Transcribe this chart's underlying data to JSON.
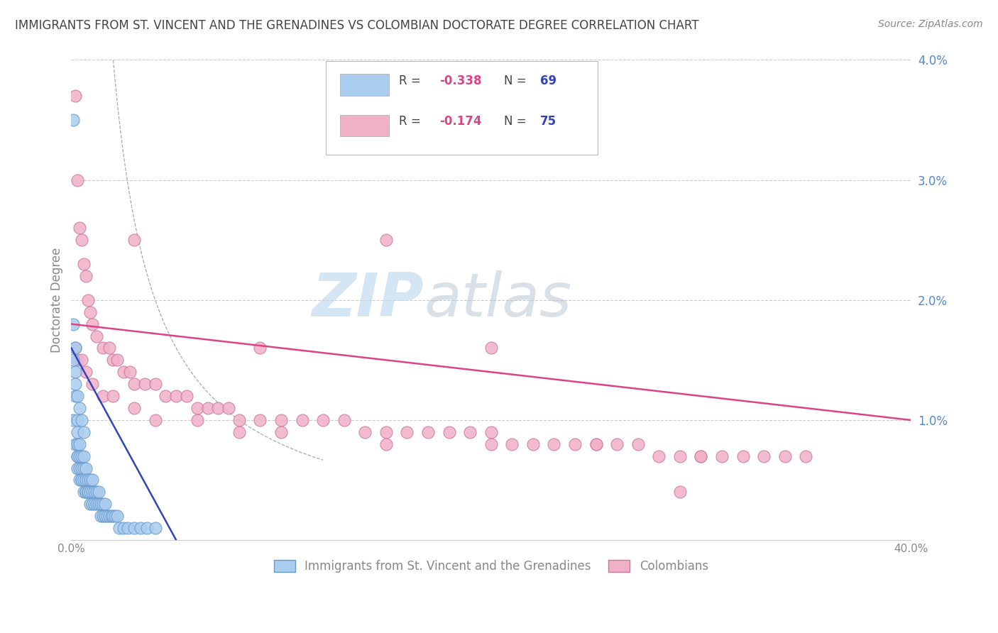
{
  "title": "IMMIGRANTS FROM ST. VINCENT AND THE GRENADINES VS COLOMBIAN DOCTORATE DEGREE CORRELATION CHART",
  "source": "Source: ZipAtlas.com",
  "ylabel": "Doctorate Degree",
  "xlim": [
    0.0,
    0.4
  ],
  "ylim": [
    0.0,
    0.04
  ],
  "xtick_positions": [
    0.0,
    0.4
  ],
  "xtick_labels": [
    "0.0%",
    "40.0%"
  ],
  "ytick_positions": [
    0.01,
    0.02,
    0.03,
    0.04
  ],
  "ytick_labels": [
    "1.0%",
    "2.0%",
    "3.0%",
    "4.0%"
  ],
  "series1_label": "Immigrants from St. Vincent and the Grenadines",
  "series1_R": "-0.338",
  "series1_N": "69",
  "series1_color": "#aaccee",
  "series1_edge": "#6699cc",
  "series2_label": "Colombians",
  "series2_R": "-0.174",
  "series2_N": "75",
  "series2_color": "#f0b0c8",
  "series2_edge": "#cc7799",
  "line1_color": "#3344bb",
  "line2_color": "#dd4488",
  "dashed_color": "#aaaaaa",
  "watermark_zip": "ZIP",
  "watermark_atlas": "atlas",
  "background_color": "#ffffff",
  "grid_color": "#cccccc",
  "title_color": "#444444",
  "axis_color": "#888888",
  "ytick_color": "#5588cc",
  "legend_R_color": "#dd4488",
  "legend_N_color": "#3344bb",
  "legend_text_color": "#444444",
  "series1_x": [
    0.001,
    0.001,
    0.001,
    0.002,
    0.002,
    0.002,
    0.002,
    0.003,
    0.003,
    0.003,
    0.003,
    0.003,
    0.003,
    0.004,
    0.004,
    0.004,
    0.004,
    0.005,
    0.005,
    0.005,
    0.005,
    0.006,
    0.006,
    0.006,
    0.006,
    0.007,
    0.007,
    0.007,
    0.007,
    0.008,
    0.008,
    0.008,
    0.009,
    0.009,
    0.009,
    0.01,
    0.01,
    0.01,
    0.011,
    0.011,
    0.012,
    0.012,
    0.013,
    0.013,
    0.014,
    0.014,
    0.015,
    0.015,
    0.016,
    0.016,
    0.017,
    0.018,
    0.019,
    0.02,
    0.021,
    0.022,
    0.023,
    0.025,
    0.027,
    0.03,
    0.033,
    0.036,
    0.04,
    0.001,
    0.002,
    0.003,
    0.004,
    0.005,
    0.006
  ],
  "series1_y": [
    0.035,
    0.018,
    0.01,
    0.016,
    0.014,
    0.012,
    0.008,
    0.01,
    0.009,
    0.008,
    0.007,
    0.007,
    0.006,
    0.008,
    0.007,
    0.006,
    0.005,
    0.007,
    0.006,
    0.005,
    0.005,
    0.007,
    0.006,
    0.005,
    0.004,
    0.006,
    0.005,
    0.004,
    0.004,
    0.005,
    0.004,
    0.004,
    0.005,
    0.004,
    0.003,
    0.005,
    0.004,
    0.003,
    0.004,
    0.003,
    0.004,
    0.003,
    0.004,
    0.003,
    0.003,
    0.002,
    0.003,
    0.002,
    0.003,
    0.002,
    0.002,
    0.002,
    0.002,
    0.002,
    0.002,
    0.002,
    0.001,
    0.001,
    0.001,
    0.001,
    0.001,
    0.001,
    0.001,
    0.015,
    0.013,
    0.012,
    0.011,
    0.01,
    0.009
  ],
  "series2_x": [
    0.002,
    0.003,
    0.004,
    0.005,
    0.006,
    0.007,
    0.008,
    0.009,
    0.01,
    0.012,
    0.015,
    0.018,
    0.02,
    0.022,
    0.025,
    0.028,
    0.03,
    0.035,
    0.04,
    0.045,
    0.05,
    0.055,
    0.06,
    0.065,
    0.07,
    0.075,
    0.08,
    0.09,
    0.1,
    0.11,
    0.12,
    0.13,
    0.14,
    0.15,
    0.16,
    0.17,
    0.18,
    0.19,
    0.2,
    0.21,
    0.22,
    0.23,
    0.24,
    0.25,
    0.26,
    0.27,
    0.28,
    0.29,
    0.3,
    0.31,
    0.32,
    0.33,
    0.34,
    0.35,
    0.002,
    0.003,
    0.005,
    0.007,
    0.01,
    0.015,
    0.02,
    0.03,
    0.04,
    0.06,
    0.08,
    0.1,
    0.15,
    0.2,
    0.25,
    0.3,
    0.2,
    0.15,
    0.03,
    0.09,
    0.29
  ],
  "series2_y": [
    0.037,
    0.03,
    0.026,
    0.025,
    0.023,
    0.022,
    0.02,
    0.019,
    0.018,
    0.017,
    0.016,
    0.016,
    0.015,
    0.015,
    0.014,
    0.014,
    0.013,
    0.013,
    0.013,
    0.012,
    0.012,
    0.012,
    0.011,
    0.011,
    0.011,
    0.011,
    0.01,
    0.01,
    0.01,
    0.01,
    0.01,
    0.01,
    0.009,
    0.009,
    0.009,
    0.009,
    0.009,
    0.009,
    0.009,
    0.008,
    0.008,
    0.008,
    0.008,
    0.008,
    0.008,
    0.008,
    0.007,
    0.007,
    0.007,
    0.007,
    0.007,
    0.007,
    0.007,
    0.007,
    0.016,
    0.015,
    0.015,
    0.014,
    0.013,
    0.012,
    0.012,
    0.011,
    0.01,
    0.01,
    0.009,
    0.009,
    0.008,
    0.008,
    0.008,
    0.007,
    0.016,
    0.025,
    0.025,
    0.016,
    0.004
  ],
  "line1_x0": 0.0,
  "line1_y0": 0.016,
  "line1_x1": 0.05,
  "line1_y1": 0.0,
  "line2_x0": 0.0,
  "line2_y0": 0.018,
  "line2_x1": 0.4,
  "line2_y1": 0.01
}
